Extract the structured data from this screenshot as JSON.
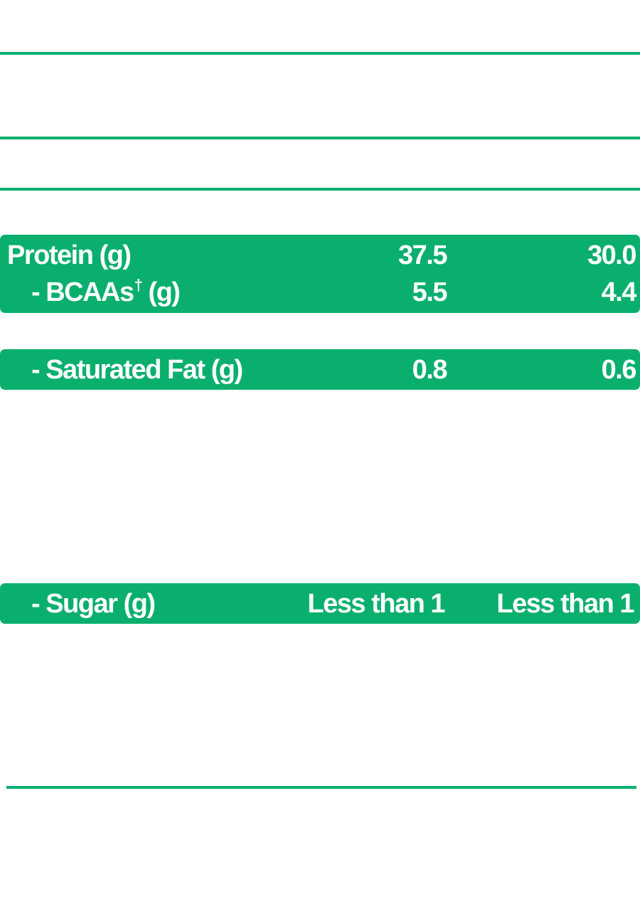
{
  "colors": {
    "accent_green": "#0aaf6e",
    "text_on_band": "#ffffff",
    "background": "#ffffff"
  },
  "rows": {
    "protein": {
      "label": "Protein (g)",
      "value_1": "37.5",
      "value_2": "30.0"
    },
    "bcaas": {
      "label": "- BCAAs",
      "label_mark": "†",
      "label_unit": " (g)",
      "value_1": "5.5",
      "value_2": "4.4"
    },
    "saturated_fat": {
      "label": "- Saturated Fat (g)",
      "value_1": "0.8",
      "value_2": "0.6"
    },
    "sugar": {
      "label": "- Sugar (g)",
      "value_1": "Less than 1",
      "value_2": "Less than 1"
    }
  }
}
